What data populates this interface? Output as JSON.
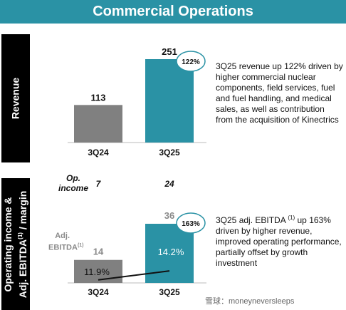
{
  "title": "Commercial Operations",
  "colors": {
    "header": "#2a92a5",
    "bar_prior": "#808080",
    "bar_current": "#2a92a5",
    "badge_border": "#2a92a5"
  },
  "chart_data": [
    {
      "type": "bar",
      "ylabel": "Revenue",
      "categories": [
        "3Q24",
        "3Q25"
      ],
      "values": [
        113,
        251
      ],
      "value_labels": [
        "113",
        "251"
      ],
      "growth_badge": "122%",
      "annotation": "3Q25 revenue up 122% driven by higher commercial nuclear components, field services, fuel and fuel handling, and medical sales, as well as contribution from the acquisition of Kinectrics"
    },
    {
      "type": "bar",
      "ylabel_line1": "Operating income &",
      "ylabel_line2_pre": "Adj. EBITDA",
      "ylabel_sup": "(1)",
      "ylabel_line2_post": " / margin",
      "categories": [
        "3Q24",
        "3Q25"
      ],
      "op_income_label_line1": "Op.",
      "op_income_label_line2": "income",
      "op_income": [
        "7",
        "24"
      ],
      "ebitda_label_line1": "Adj.",
      "ebitda_label_line2": "EBITDA",
      "ebitda_label_sup": "(1)",
      "values": [
        14,
        36
      ],
      "value_labels": [
        "14",
        "36"
      ],
      "margin": [
        11.9,
        14.2
      ],
      "margin_labels": [
        "11.9%",
        "14.2%"
      ],
      "growth_badge": "163%",
      "annotation_pre": "3Q25 adj. EBITDA ",
      "annotation_sup": "(1)",
      "annotation_post": " up 163% driven by higher revenue, improved operating performance, partially offset by growth investment"
    }
  ],
  "watermark": "雪球：moneyneversleeps"
}
